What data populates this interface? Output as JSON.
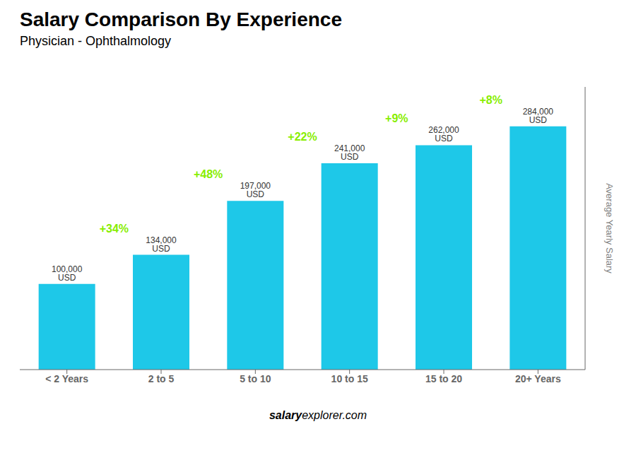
{
  "chart_data": {
    "type": "bar",
    "title": "Salary Comparison By Experience",
    "subtitle": "Physician - Ophthalmology",
    "categories": [
      "< 2 Years",
      "2 to 5",
      "5 to 10",
      "10 to 15",
      "15 to 20",
      "20+ Years"
    ],
    "values": [
      100000,
      134000,
      197000,
      241000,
      262000,
      284000
    ],
    "value_labels": [
      "100,000 USD",
      "134,000 USD",
      "197,000 USD",
      "241,000 USD",
      "262,000 USD",
      "284,000 USD"
    ],
    "data_labels": true,
    "color": "#1ec8e8",
    "ylim": [
      0,
      330000
    ],
    "ylabel": "Average Yearly Salary",
    "tick_labels": "x",
    "grid": false,
    "annotations": [
      {
        "text": "+34%",
        "color": "#88ee00"
      },
      {
        "text": "+48%",
        "color": "#88ee00"
      },
      {
        "text": "+22%",
        "color": "#88ee00"
      },
      {
        "text": "+9%",
        "color": "#88ee00"
      },
      {
        "text": "+8%",
        "color": "#88ee00"
      }
    ],
    "watermark": [
      "salary",
      "explorer.com"
    ]
  }
}
